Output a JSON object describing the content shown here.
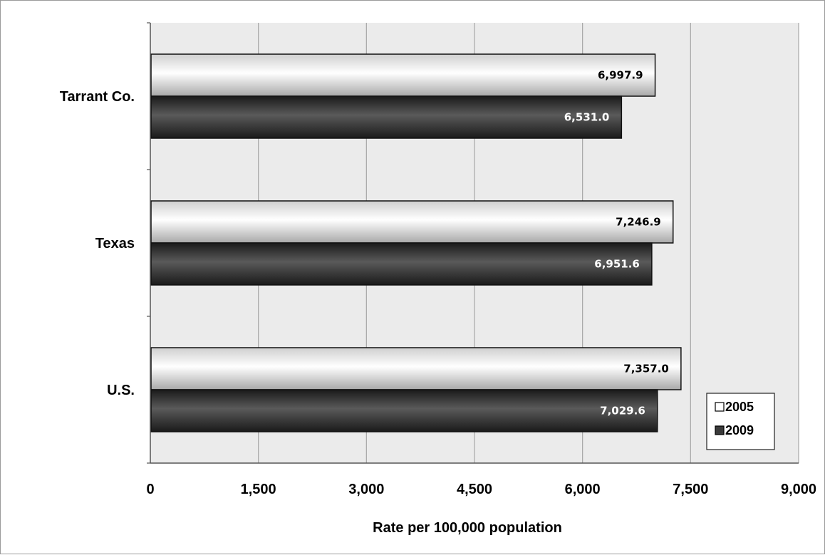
{
  "chart_data": {
    "type": "bar",
    "orientation": "horizontal",
    "categories": [
      "Tarrant Co.",
      "Texas",
      "U.S."
    ],
    "series": [
      {
        "name": "2005",
        "values": [
          6997.9,
          7246.9,
          7357.0
        ],
        "labels": [
          "6,997.9",
          "7,246.9",
          "7,357.0"
        ],
        "color": "#f2f2f2"
      },
      {
        "name": "2009",
        "values": [
          6531.0,
          6951.6,
          7029.6
        ],
        "labels": [
          "6,531.0",
          "6,951.6",
          "7,029.6"
        ],
        "color": "#3a3a3a"
      }
    ],
    "xlabel": "Rate per 100,000 population",
    "ylabel": "",
    "xlim": [
      0,
      9000
    ],
    "xticks": [
      0,
      1500,
      3000,
      4500,
      6000,
      7500,
      9000
    ],
    "xtick_labels": [
      "0",
      "1,500",
      "3,000",
      "4,500",
      "6,000",
      "7,500",
      "9,000"
    ],
    "grid": true,
    "plot_background": "#ebebeb",
    "legend": {
      "position": "bottom-right",
      "entries": [
        "2005",
        "2009"
      ]
    }
  }
}
